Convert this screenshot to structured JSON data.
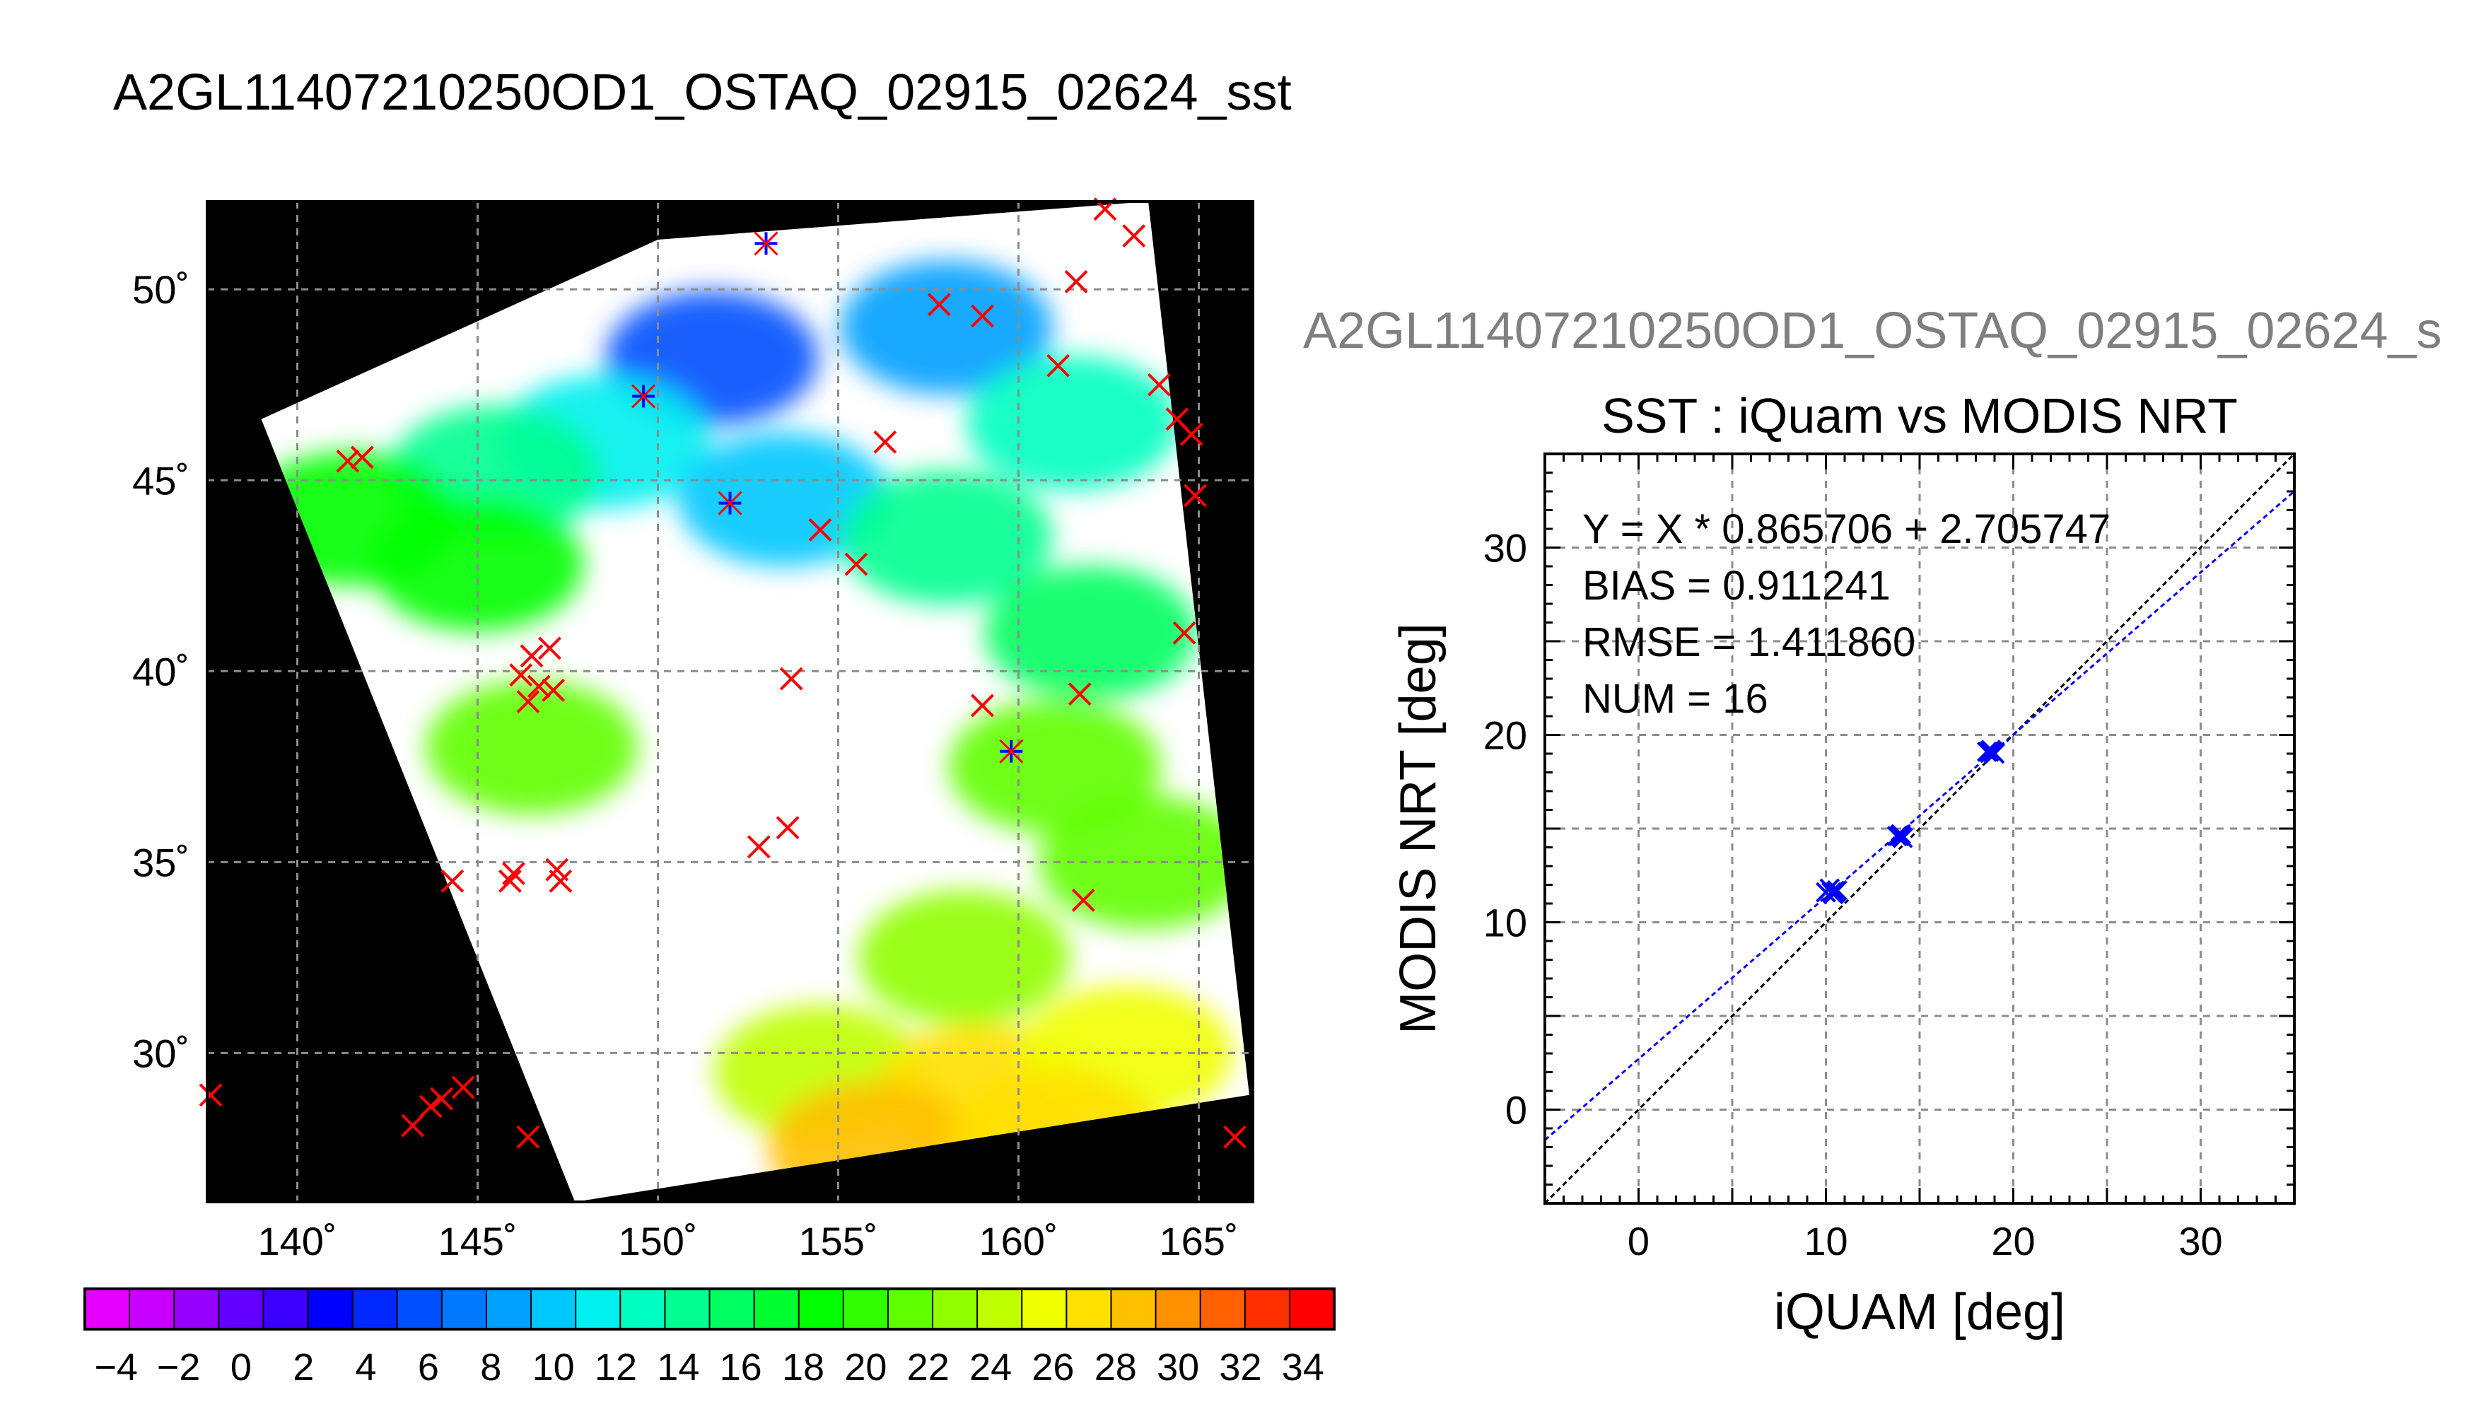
{
  "main_title": "A2GL11407210250OD1_OSTAQ_02915_02624_sst",
  "panel_title": "A2GL11407210250OD1_OSTAQ_02915_02624_s",
  "colors": {
    "satellite_pass": "#ffffff",
    "land_background": "#000000",
    "grid": "#8c8c8c",
    "match_marker": "#ff0000",
    "matched_sst_marker": "#0000ff",
    "regression_line": "#0000ff",
    "identity_line": "#000000"
  },
  "chart_data": [
    {
      "type": "scatter",
      "panel": "map",
      "xlabel": "",
      "ylabel": "",
      "xlim": [
        137.5,
        166.5
      ],
      "ylim": [
        26.1,
        52.3
      ],
      "x_ticks": [
        140,
        145,
        150,
        155,
        160,
        165
      ],
      "y_ticks": [
        30,
        35,
        40,
        45,
        50
      ],
      "x_tick_labels": [
        "140˚",
        "145˚",
        "150˚",
        "155˚",
        "160˚",
        "165˚"
      ],
      "y_tick_labels": [
        "30˚",
        "35˚",
        "40˚",
        "45˚",
        "50˚"
      ],
      "grid": true,
      "swath_corners_lonlat": [
        [
          139.0,
          46.6
        ],
        [
          150.0,
          51.3
        ],
        [
          163.6,
          52.3
        ],
        [
          166.4,
          28.9
        ],
        [
          147.7,
          26.1
        ]
      ],
      "sst_patches": [
        {
          "lon": 151.5,
          "lat": 48.2,
          "sst": 6
        },
        {
          "lon": 148.5,
          "lat": 46.0,
          "sst": 11
        },
        {
          "lon": 153.5,
          "lat": 44.5,
          "sst": 10
        },
        {
          "lon": 158.0,
          "lat": 49.0,
          "sst": 9
        },
        {
          "lon": 161.5,
          "lat": 46.5,
          "sst": 13
        },
        {
          "lon": 145.5,
          "lat": 45.2,
          "sst": 14
        },
        {
          "lon": 141.5,
          "lat": 44.0,
          "sst": 19
        },
        {
          "lon": 145.0,
          "lat": 42.8,
          "sst": 18
        },
        {
          "lon": 158.0,
          "lat": 43.5,
          "sst": 14
        },
        {
          "lon": 162.0,
          "lat": 41.0,
          "sst": 15
        },
        {
          "lon": 146.5,
          "lat": 38.0,
          "sst": 22
        },
        {
          "lon": 161.0,
          "lat": 37.5,
          "sst": 21
        },
        {
          "lon": 163.5,
          "lat": 35.0,
          "sst": 22
        },
        {
          "lon": 158.5,
          "lat": 32.5,
          "sst": 23
        },
        {
          "lon": 154.5,
          "lat": 29.5,
          "sst": 24
        },
        {
          "lon": 159.0,
          "lat": 29.0,
          "sst": 27
        },
        {
          "lon": 163.0,
          "lat": 30.0,
          "sst": 26
        },
        {
          "lon": 156.0,
          "lat": 27.5,
          "sst": 28
        },
        {
          "lon": 161.0,
          "lat": 27.8,
          "sst": 27
        }
      ],
      "series": [
        {
          "name": "",
          "marker": "x",
          "color": "#ff0000",
          "points": [
            [
              162.4,
              52.1
            ],
            [
              163.2,
              51.4
            ],
            [
              161.6,
              50.2
            ],
            [
              157.8,
              49.6
            ],
            [
              159.0,
              49.3
            ],
            [
              161.1,
              48.0
            ],
            [
              163.9,
              47.5
            ],
            [
              164.4,
              46.6
            ],
            [
              164.8,
              46.2
            ],
            [
              156.3,
              46.0
            ],
            [
              164.9,
              44.6
            ],
            [
              141.4,
              45.5
            ],
            [
              141.8,
              45.6
            ],
            [
              154.5,
              43.7
            ],
            [
              155.5,
              42.8
            ],
            [
              164.6,
              41.0
            ],
            [
              146.5,
              40.4
            ],
            [
              147.0,
              40.6
            ],
            [
              146.2,
              39.9
            ],
            [
              146.7,
              39.6
            ],
            [
              147.1,
              39.5
            ],
            [
              146.4,
              39.2
            ],
            [
              153.7,
              39.8
            ],
            [
              159.0,
              39.1
            ],
            [
              161.7,
              39.4
            ],
            [
              153.6,
              35.9
            ],
            [
              152.8,
              35.4
            ],
            [
              144.3,
              34.5
            ],
            [
              145.9,
              34.5
            ],
            [
              146.0,
              34.7
            ],
            [
              147.2,
              34.8
            ],
            [
              147.3,
              34.5
            ],
            [
              161.8,
              34.0
            ],
            [
              137.6,
              28.9
            ],
            [
              143.7,
              28.6
            ],
            [
              143.2,
              28.1
            ],
            [
              144.0,
              28.8
            ],
            [
              144.6,
              29.1
            ],
            [
              146.4,
              27.8
            ],
            [
              166.0,
              27.8
            ]
          ]
        },
        {
          "name": "",
          "marker": "star",
          "color": "#0000ff",
          "points": [
            [
              153.0,
              51.2
            ],
            [
              149.6,
              47.2
            ],
            [
              152.0,
              44.4
            ],
            [
              159.8,
              37.9
            ]
          ]
        }
      ]
    },
    {
      "type": "scatter",
      "panel": "colorbar",
      "title": "",
      "xlabel": "",
      "ylabel": "",
      "xlim": [
        -5,
        35
      ],
      "tick_labels": [
        "−4",
        "−2",
        "0",
        "2",
        "4",
        "6",
        "8",
        "10",
        "12",
        "14",
        "16",
        "18",
        "20",
        "22",
        "24",
        "26",
        "28",
        "30",
        "32",
        "34"
      ],
      "colors": [
        "#e600ff",
        "#c800ff",
        "#9600ff",
        "#6400ff",
        "#3c00ff",
        "#0000ff",
        "#0028ff",
        "#0050ff",
        "#0078ff",
        "#00a0ff",
        "#00c8ff",
        "#00f0f0",
        "#00ffc0",
        "#00ff90",
        "#00ff60",
        "#00ff30",
        "#00ff00",
        "#30ff00",
        "#60ff00",
        "#90ff00",
        "#c0ff00",
        "#f0ff00",
        "#ffe000",
        "#ffc000",
        "#ff9000",
        "#ff6000",
        "#ff3000",
        "#ff0000"
      ],
      "series": []
    },
    {
      "type": "scatter",
      "panel": "scatter",
      "title": "SST : iQuam vs MODIS NRT",
      "xlabel": "iQUAM [deg]",
      "ylabel": "MODIS NRT [deg]",
      "xlim": [
        -5,
        35
      ],
      "ylim": [
        -5,
        35
      ],
      "x_ticks": [
        0,
        10,
        20,
        30
      ],
      "y_ticks": [
        0,
        10,
        20,
        30
      ],
      "grid": true,
      "annotations": [
        "Y = X * 0.865706 + 2.705747",
        "BIAS = 0.911241",
        "RMSE = 1.411860",
        "NUM = 16"
      ],
      "regression": {
        "slope": 0.865706,
        "intercept": 2.705747
      },
      "identity_line": true,
      "series": [
        {
          "name": "",
          "marker": "x",
          "color": "#0000ff",
          "points": [
            [
              10.0,
              11.6
            ],
            [
              10.2,
              11.8
            ],
            [
              10.4,
              11.5
            ],
            [
              10.6,
              11.7
            ],
            [
              13.8,
              14.6
            ],
            [
              14.0,
              14.7
            ],
            [
              14.1,
              14.5
            ],
            [
              18.6,
              19.1
            ],
            [
              18.8,
              19.2
            ],
            [
              19.0,
              19.0
            ],
            [
              10.3,
              11.6
            ],
            [
              13.9,
              14.6
            ],
            [
              18.9,
              19.1
            ],
            [
              10.5,
              11.6
            ],
            [
              14.0,
              14.6
            ],
            [
              18.7,
              19.1
            ]
          ]
        }
      ]
    }
  ]
}
